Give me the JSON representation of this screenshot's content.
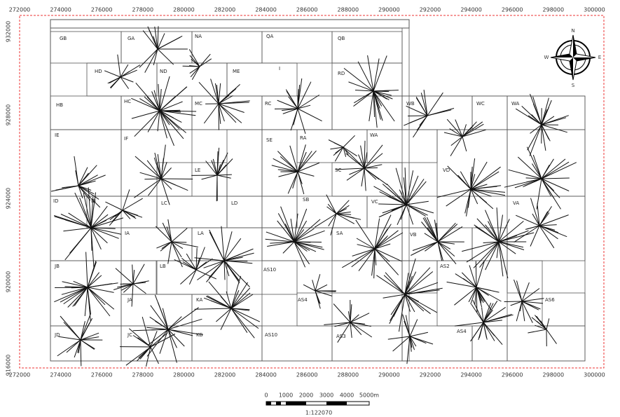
{
  "x_labels_top": [
    "272000",
    "274000",
    "276000",
    "278000",
    "280000",
    "282000",
    "284000",
    "286000",
    "288000",
    "290000",
    "292000",
    "294000",
    "296000",
    "298000",
    "300000"
  ],
  "x_labels_bottom": [
    "272000",
    "274000",
    "276000",
    "278000",
    "280000",
    "282000",
    "284000",
    "286000",
    "288000",
    "290000",
    "292000",
    "294000",
    "296000",
    "298000",
    "300000"
  ],
  "y_labels": [
    "932000",
    "928000",
    "924000",
    "920000",
    "916000"
  ],
  "cells": [
    "GB",
    "GA",
    "NA",
    "QA",
    "QB",
    "HD",
    "ND",
    "ME",
    "I",
    "RD",
    "HB",
    "HC",
    "MC",
    "RC",
    "WB",
    "WC",
    "WA",
    "IE",
    "IF",
    "SE",
    "RA",
    "WA",
    "LE",
    "SC",
    "VD",
    "ID",
    "IB",
    "LC",
    "LD",
    "SB",
    "VC",
    "VA",
    "IA",
    "LA",
    "SA",
    "VB",
    "JB",
    "LB",
    "AS10",
    "AS2",
    "JA",
    "KA",
    "AS4",
    "AS6",
    "JD",
    "JC",
    "KB",
    "AS10",
    "AS3",
    "AS4"
  ],
  "compass": {
    "n": "N",
    "s": "S",
    "e": "E",
    "w": "W"
  },
  "scale": {
    "ticks": [
      "0",
      "1000",
      "2000",
      "3000",
      "4000",
      "5000m"
    ],
    "ratio": "1:122070"
  }
}
